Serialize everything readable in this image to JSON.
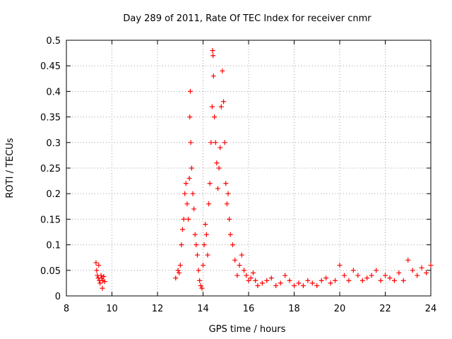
{
  "chart_data": {
    "type": "scatter",
    "title": "Day 289 of 2011, Rate Of TEC Index for receiver cnmr",
    "xlabel": "GPS time / hours",
    "ylabel": "ROTI / TECUs",
    "xlim": [
      8,
      24
    ],
    "ylim": [
      0,
      0.5
    ],
    "xticks": [
      "8",
      "10",
      "12",
      "14",
      "16",
      "18",
      "20",
      "22",
      "24"
    ],
    "yticks": [
      "0",
      "0.05",
      "0.1",
      "0.15",
      "0.2",
      "0.25",
      "0.3",
      "0.35",
      "0.4",
      "0.45",
      "0.5"
    ],
    "grid": true,
    "marker": "plus",
    "color": "#ff0000",
    "series": [
      {
        "x": [
          9.3,
          9.33,
          9.36,
          9.4,
          9.42,
          9.45,
          9.48,
          9.52,
          9.55,
          9.58,
          9.6,
          9.64,
          9.68,
          12.8,
          12.9,
          12.95,
          13.0,
          13.05,
          13.1,
          13.15,
          13.2,
          13.25,
          13.3,
          13.35,
          13.4,
          13.42,
          13.44,
          13.46,
          13.5,
          13.55,
          13.6,
          13.65,
          13.7,
          13.75,
          13.8,
          13.85,
          13.9,
          13.95,
          14.0,
          14.05,
          14.1,
          14.15,
          14.2,
          14.25,
          14.3,
          14.35,
          14.4,
          14.42,
          14.44,
          14.46,
          14.5,
          14.55,
          14.6,
          14.65,
          14.7,
          14.75,
          14.8,
          14.85,
          14.9,
          14.95,
          15.0,
          15.05,
          15.1,
          15.15,
          15.2,
          15.3,
          15.4,
          15.5,
          15.6,
          15.7,
          15.8,
          15.9,
          16.0,
          16.1,
          16.2,
          16.3,
          16.4,
          16.6,
          16.8,
          17.0,
          17.2,
          17.4,
          17.6,
          17.8,
          18.0,
          18.2,
          18.4,
          18.6,
          18.8,
          19.0,
          19.2,
          19.4,
          19.6,
          19.8,
          20.0,
          20.2,
          20.4,
          20.6,
          20.8,
          21.0,
          21.2,
          21.4,
          21.6,
          21.8,
          22.0,
          22.2,
          22.4,
          22.6,
          22.8,
          23.0,
          23.2,
          23.4,
          23.6,
          23.8,
          24.0
        ],
        "y": [
          0.065,
          0.05,
          0.04,
          0.035,
          0.06,
          0.03,
          0.025,
          0.04,
          0.035,
          0.015,
          0.03,
          0.038,
          0.028,
          0.035,
          0.05,
          0.045,
          0.06,
          0.1,
          0.13,
          0.15,
          0.2,
          0.22,
          0.18,
          0.15,
          0.23,
          0.35,
          0.4,
          0.3,
          0.25,
          0.2,
          0.17,
          0.12,
          0.1,
          0.08,
          0.05,
          0.03,
          0.02,
          0.015,
          0.06,
          0.1,
          0.14,
          0.12,
          0.08,
          0.18,
          0.22,
          0.3,
          0.37,
          0.48,
          0.47,
          0.43,
          0.35,
          0.3,
          0.26,
          0.21,
          0.25,
          0.29,
          0.37,
          0.44,
          0.38,
          0.3,
          0.22,
          0.18,
          0.2,
          0.15,
          0.12,
          0.1,
          0.07,
          0.04,
          0.06,
          0.08,
          0.05,
          0.04,
          0.03,
          0.035,
          0.045,
          0.03,
          0.02,
          0.025,
          0.03,
          0.035,
          0.02,
          0.025,
          0.04,
          0.03,
          0.02,
          0.025,
          0.02,
          0.03,
          0.025,
          0.02,
          0.03,
          0.035,
          0.025,
          0.03,
          0.06,
          0.04,
          0.03,
          0.05,
          0.04,
          0.03,
          0.035,
          0.04,
          0.05,
          0.03,
          0.04,
          0.035,
          0.03,
          0.045,
          0.03,
          0.07,
          0.05,
          0.04,
          0.055,
          0.045,
          0.06
        ]
      }
    ]
  }
}
